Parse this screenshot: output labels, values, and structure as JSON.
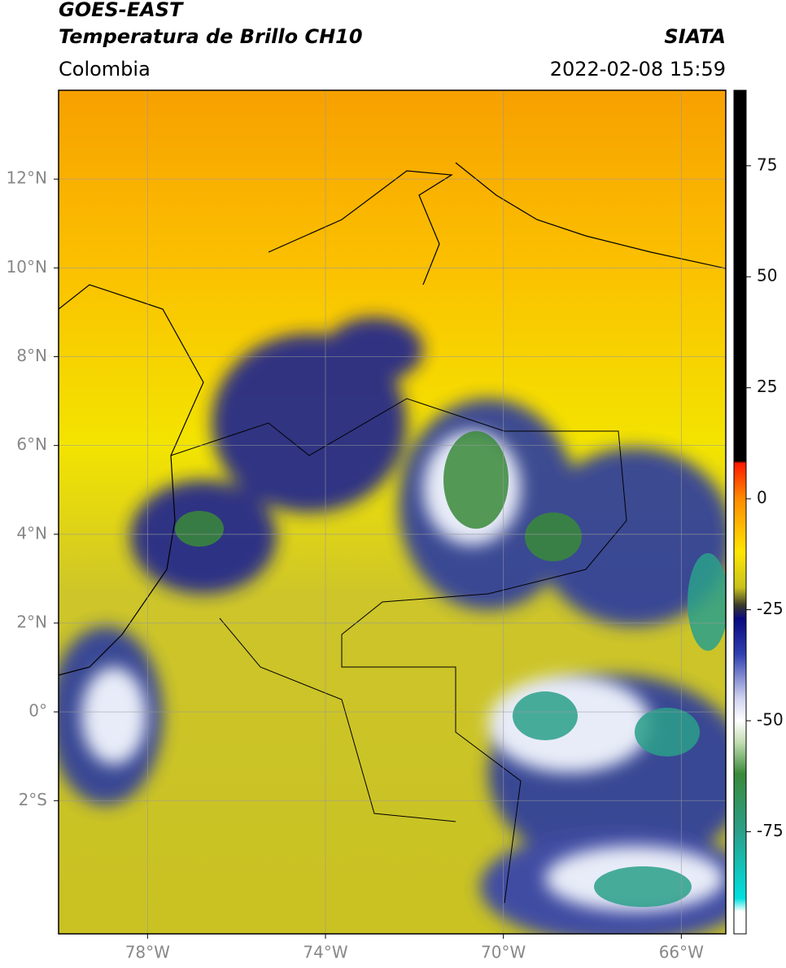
{
  "header": {
    "title": "GOES-EAST",
    "subtitle": "Temperatura de Brillo CH10",
    "source": "SIATA",
    "region": "Colombia",
    "timestamp": "2022-02-08 15:59"
  },
  "map": {
    "xlim": [
      -80,
      -65
    ],
    "ylim": [
      -5,
      14
    ],
    "grid": true,
    "xticks": [
      {
        "value": -78,
        "label": "78°W"
      },
      {
        "value": -74,
        "label": "74°W"
      },
      {
        "value": -70,
        "label": "70°W"
      },
      {
        "value": -66,
        "label": "66°W"
      }
    ],
    "yticks": [
      {
        "value": 12,
        "label": "12°N"
      },
      {
        "value": 10,
        "label": "10°N"
      },
      {
        "value": 8,
        "label": "8°N"
      },
      {
        "value": 6,
        "label": "6°N"
      },
      {
        "value": 4,
        "label": "4°N"
      },
      {
        "value": 2,
        "label": "2°N"
      },
      {
        "value": 0,
        "label": "0°"
      },
      {
        "value": -2,
        "label": "2°S"
      }
    ]
  },
  "colorbar": {
    "lim": [
      -98,
      92
    ],
    "ticks": [
      75,
      50,
      25,
      0,
      -25,
      -50,
      -75
    ],
    "colormap": [
      {
        "value": 92,
        "color": "#000000"
      },
      {
        "value": 8.5,
        "color": "#000000"
      },
      {
        "value": 8,
        "color": "#ff1a00"
      },
      {
        "value": 0,
        "color": "#ff8c00"
      },
      {
        "value": -12,
        "color": "#ffe600"
      },
      {
        "value": -20,
        "color": "#c8c21e"
      },
      {
        "value": -24,
        "color": "#3a3a2a"
      },
      {
        "value": -27,
        "color": "#0a0a80"
      },
      {
        "value": -35,
        "color": "#3040b0"
      },
      {
        "value": -45,
        "color": "#d0d4f0"
      },
      {
        "value": -50,
        "color": "#ffffff"
      },
      {
        "value": -55,
        "color": "#c0dcb0"
      },
      {
        "value": -62,
        "color": "#3a8a3a"
      },
      {
        "value": -75,
        "color": "#2aa08a"
      },
      {
        "value": -90,
        "color": "#00e0e0"
      },
      {
        "value": -93,
        "color": "#ffffff"
      },
      {
        "value": -98,
        "color": "#ffffff"
      }
    ]
  }
}
